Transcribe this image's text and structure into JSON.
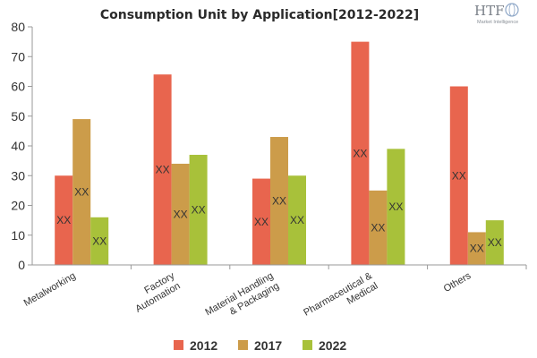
{
  "logo": {
    "text": "HTF",
    "subtitle": "Market Intelligence"
  },
  "chart_data": {
    "type": "bar",
    "title": "Consumption Unit by  Application[2012-2022]",
    "xlabel": "",
    "ylabel": "",
    "ylim": [
      0,
      80
    ],
    "yticks": [
      0,
      10,
      20,
      30,
      40,
      50,
      60,
      70,
      80
    ],
    "grid": false,
    "legend_position": "bottom",
    "categories": [
      [
        "Metalworking"
      ],
      [
        "Factory",
        "Automation"
      ],
      [
        "Material Handling",
        "& Packaging"
      ],
      [
        "Pharmaceutical &",
        "Medical"
      ],
      [
        "Others"
      ]
    ],
    "series": [
      {
        "name": "2012",
        "color": "#e8654e",
        "values": [
          30,
          64,
          29,
          75,
          60
        ]
      },
      {
        "name": "2017",
        "color": "#cc9c4a",
        "values": [
          49,
          34,
          43,
          25,
          11
        ]
      },
      {
        "name": "2022",
        "color": "#a8c13a",
        "values": [
          16,
          37,
          30,
          39,
          15
        ]
      }
    ],
    "data_label_text": "XX"
  }
}
